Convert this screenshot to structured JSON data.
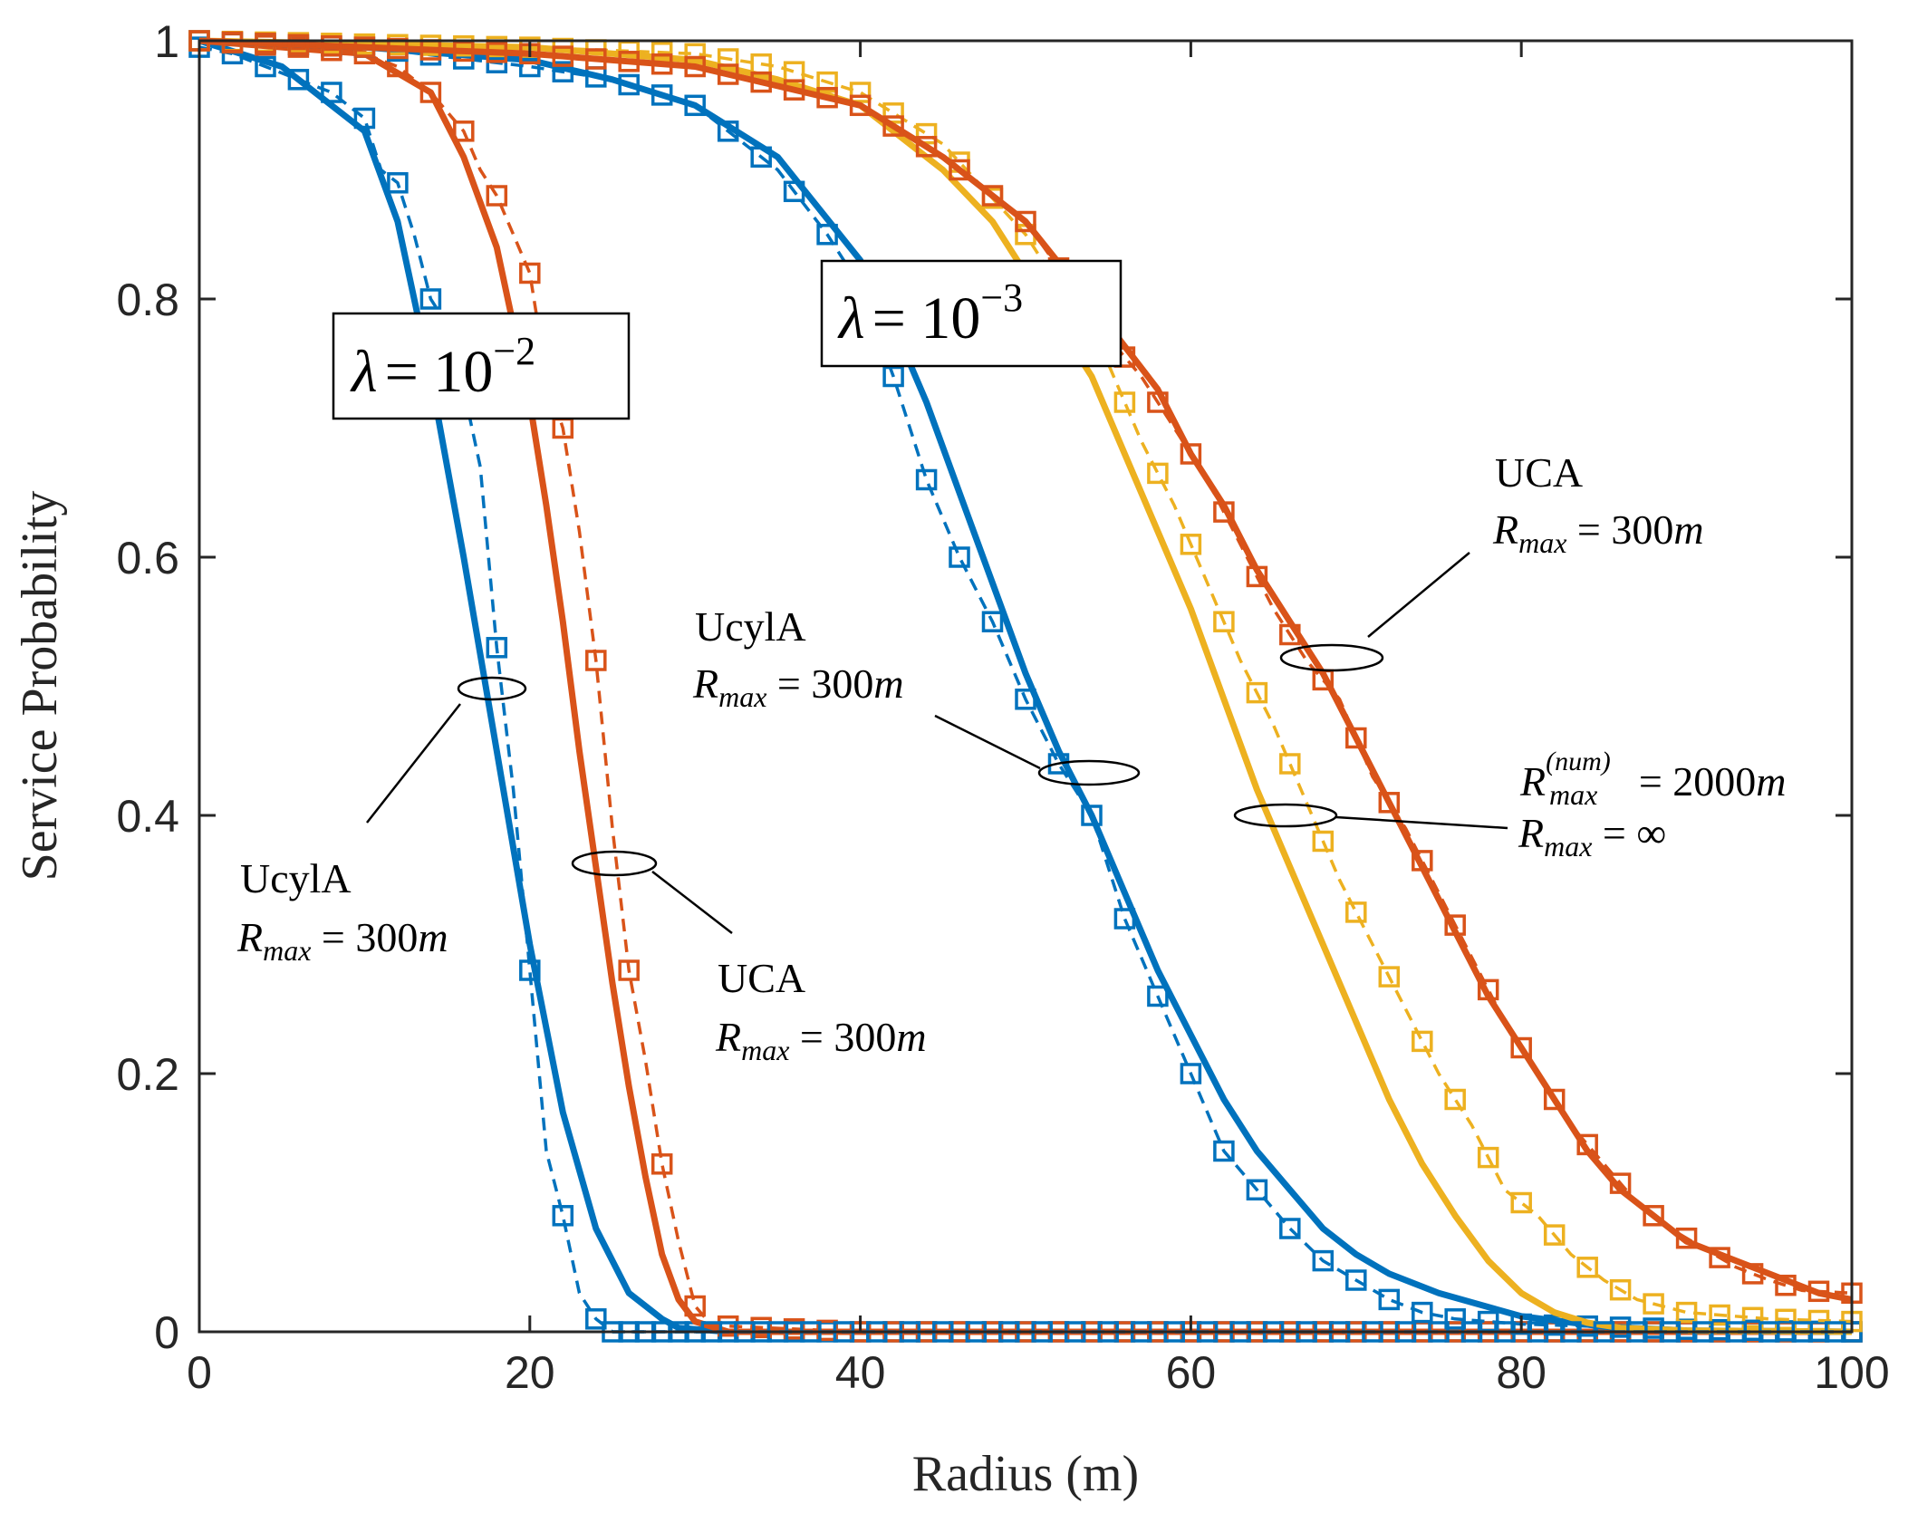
{
  "chart_data": {
    "type": "line",
    "xlabel": "Radius (m)",
    "ylabel": "Service Probability",
    "xlim": [
      0,
      100
    ],
    "ylim": [
      0,
      1
    ],
    "xticks": [
      "0",
      "20",
      "40",
      "60",
      "80",
      "100"
    ],
    "yticks": [
      "0",
      "0.2",
      "0.4",
      "0.6",
      "0.8",
      "1"
    ],
    "x_tick_values": [
      0,
      20,
      40,
      60,
      80,
      100
    ],
    "y_tick_values": [
      0,
      0.2,
      0.4,
      0.6,
      0.8,
      1
    ],
    "grid": false,
    "box": true,
    "colors": {
      "blue": "#0072BD",
      "orange": "#D95319",
      "yellow": "#EDB120",
      "axis": "#262626"
    },
    "series": [
      {
        "color": "#0072BD",
        "style": "solid",
        "x": [
          0,
          5,
          10,
          12,
          14,
          16,
          18,
          20,
          22,
          24,
          26,
          28,
          29,
          32,
          40,
          60,
          100
        ],
        "y": [
          1.0,
          0.98,
          0.93,
          0.86,
          0.74,
          0.6,
          0.45,
          0.3,
          0.17,
          0.08,
          0.03,
          0.01,
          0.003,
          0.0,
          0.0,
          0.0,
          0.0
        ]
      },
      {
        "color": "#0072BD",
        "style": "dashed-square",
        "x": [
          0,
          2,
          4,
          6,
          8,
          10,
          11,
          12,
          13,
          14,
          15,
          16,
          17,
          18,
          19,
          20,
          21,
          22,
          23,
          24,
          25,
          26,
          30,
          40,
          60,
          100
        ],
        "y": [
          0.995,
          0.99,
          0.98,
          0.97,
          0.96,
          0.94,
          0.9,
          0.89,
          0.85,
          0.8,
          0.78,
          0.73,
          0.67,
          0.53,
          0.42,
          0.28,
          0.14,
          0.09,
          0.03,
          0.01,
          0.0,
          0.0,
          0.0,
          0.0,
          0.0,
          0.0
        ]
      },
      {
        "color": "#D95319",
        "style": "solid",
        "x": [
          0,
          10,
          14,
          16,
          18,
          20,
          21,
          22,
          23,
          24,
          25,
          26,
          27,
          28,
          29,
          30,
          32,
          40,
          100
        ],
        "y": [
          1.0,
          0.99,
          0.96,
          0.91,
          0.84,
          0.72,
          0.64,
          0.55,
          0.45,
          0.36,
          0.27,
          0.19,
          0.12,
          0.06,
          0.025,
          0.008,
          0.0,
          0.0,
          0.0
        ]
      },
      {
        "color": "#D95319",
        "style": "dashed-square",
        "x": [
          0,
          6,
          10,
          12,
          14,
          16,
          17,
          18,
          19,
          20,
          21,
          22,
          23,
          24,
          25,
          26,
          27,
          28,
          29,
          30,
          31,
          40,
          100
        ],
        "y": [
          1.0,
          0.995,
          0.99,
          0.98,
          0.96,
          0.93,
          0.9,
          0.88,
          0.85,
          0.82,
          0.74,
          0.7,
          0.62,
          0.52,
          0.39,
          0.28,
          0.21,
          0.13,
          0.07,
          0.02,
          0.005,
          0.0,
          0.0
        ]
      },
      {
        "color": "#0072BD",
        "style": "solid",
        "x": [
          0,
          10,
          20,
          25,
          30,
          35,
          40,
          42,
          44,
          46,
          48,
          50,
          52,
          54,
          56,
          58,
          60,
          62,
          64,
          66,
          68,
          70,
          72,
          75,
          80,
          85,
          90,
          100
        ],
        "y": [
          1.0,
          0.995,
          0.985,
          0.97,
          0.95,
          0.91,
          0.83,
          0.78,
          0.72,
          0.65,
          0.58,
          0.51,
          0.45,
          0.4,
          0.34,
          0.28,
          0.23,
          0.18,
          0.14,
          0.11,
          0.08,
          0.06,
          0.045,
          0.03,
          0.012,
          0.004,
          0.001,
          0.0
        ]
      },
      {
        "color": "#0072BD",
        "style": "dashed-square",
        "x": [
          0,
          10,
          20,
          25,
          30,
          35,
          38,
          40,
          42,
          44,
          46,
          48,
          50,
          52,
          54,
          56,
          58,
          60,
          62,
          64,
          66,
          68,
          70,
          72,
          74,
          76,
          80,
          85,
          90,
          100
        ],
        "y": [
          1.0,
          0.995,
          0.98,
          0.97,
          0.95,
          0.9,
          0.85,
          0.81,
          0.74,
          0.66,
          0.6,
          0.55,
          0.49,
          0.44,
          0.4,
          0.32,
          0.26,
          0.2,
          0.14,
          0.11,
          0.08,
          0.055,
          0.04,
          0.025,
          0.015,
          0.01,
          0.006,
          0.004,
          0.002,
          0.0
        ]
      },
      {
        "color": "#EDB120",
        "style": "solid",
        "x": [
          0,
          20,
          30,
          35,
          40,
          45,
          48,
          50,
          52,
          54,
          56,
          58,
          60,
          62,
          64,
          66,
          68,
          70,
          72,
          74,
          76,
          78,
          80,
          82,
          84,
          86,
          90,
          100
        ],
        "y": [
          1.0,
          0.995,
          0.985,
          0.97,
          0.95,
          0.9,
          0.86,
          0.82,
          0.78,
          0.74,
          0.68,
          0.62,
          0.56,
          0.49,
          0.42,
          0.36,
          0.3,
          0.24,
          0.18,
          0.13,
          0.09,
          0.055,
          0.03,
          0.015,
          0.007,
          0.003,
          0.001,
          0.0
        ]
      },
      {
        "color": "#EDB120",
        "style": "dashed-square",
        "x": [
          0,
          20,
          30,
          35,
          40,
          45,
          50,
          55,
          57,
          59,
          61,
          63,
          65,
          67,
          69,
          71,
          73,
          75,
          77,
          79,
          81,
          83,
          85,
          87,
          90,
          95,
          100
        ],
        "y": [
          1.0,
          0.995,
          0.99,
          0.98,
          0.96,
          0.92,
          0.85,
          0.75,
          0.69,
          0.64,
          0.58,
          0.52,
          0.47,
          0.41,
          0.35,
          0.3,
          0.25,
          0.2,
          0.16,
          0.11,
          0.09,
          0.06,
          0.04,
          0.025,
          0.015,
          0.01,
          0.008
        ]
      },
      {
        "color": "#D95319",
        "style": "solid",
        "x": [
          0,
          20,
          30,
          40,
          45,
          50,
          55,
          58,
          60,
          62,
          64,
          66,
          68,
          70,
          72,
          74,
          76,
          78,
          80,
          82,
          84,
          86,
          88,
          90,
          92,
          94,
          96,
          98,
          100
        ],
        "y": [
          1.0,
          0.99,
          0.98,
          0.95,
          0.91,
          0.86,
          0.78,
          0.73,
          0.68,
          0.64,
          0.59,
          0.55,
          0.51,
          0.46,
          0.41,
          0.36,
          0.31,
          0.26,
          0.22,
          0.18,
          0.14,
          0.11,
          0.09,
          0.07,
          0.06,
          0.05,
          0.04,
          0.03,
          0.025
        ]
      },
      {
        "color": "#D95319",
        "style": "dashed-square",
        "x": [
          0,
          20,
          30,
          40,
          45,
          50,
          55,
          57,
          59,
          61,
          63,
          65,
          67,
          69,
          71,
          73,
          75,
          77,
          79,
          81,
          83,
          85,
          87,
          89,
          91,
          93,
          95,
          97,
          100
        ],
        "y": [
          1.0,
          0.99,
          0.98,
          0.95,
          0.91,
          0.86,
          0.77,
          0.74,
          0.7,
          0.66,
          0.61,
          0.56,
          0.52,
          0.49,
          0.43,
          0.39,
          0.34,
          0.29,
          0.24,
          0.2,
          0.16,
          0.13,
          0.1,
          0.08,
          0.065,
          0.05,
          0.04,
          0.032,
          0.03
        ]
      },
      {
        "color": "#0072BD",
        "style": "dashed-square-flat",
        "x": [
          25,
          30,
          40,
          50,
          60,
          70,
          80,
          90,
          100
        ],
        "y": [
          0.0,
          0.0,
          0.0,
          0.0,
          0.0,
          0.0,
          0.0,
          0.0,
          0.0
        ]
      }
    ],
    "annotations": {
      "lambda2": {
        "lambda": "λ",
        "eq": "= 10",
        "exp": "−2"
      },
      "lambda3": {
        "lambda": "λ",
        "eq": "= 10",
        "exp": "−3"
      },
      "ucyla_left": {
        "line1": "UcylA",
        "R": "R",
        "sub": "max",
        "rest": " = 300",
        "unit": "m"
      },
      "uca_left": {
        "line1": "UCA",
        "R": "R",
        "sub": "max",
        "rest": " = 300",
        "unit": "m"
      },
      "ucyla_mid": {
        "line1": "UcylA",
        "R": "R",
        "sub": "max",
        "rest": " = 300",
        "unit": "m"
      },
      "uca_right": {
        "line1": "UCA",
        "R": "R",
        "sub": "max",
        "rest": " = 300",
        "unit": "m"
      },
      "num_label": {
        "R": "R",
        "sup": "(num)",
        "sub": "max",
        "rest": " = 2000",
        "unit": "m"
      },
      "inf_label": {
        "R": "R",
        "sub": "max",
        "rest": " = ∞"
      }
    }
  }
}
